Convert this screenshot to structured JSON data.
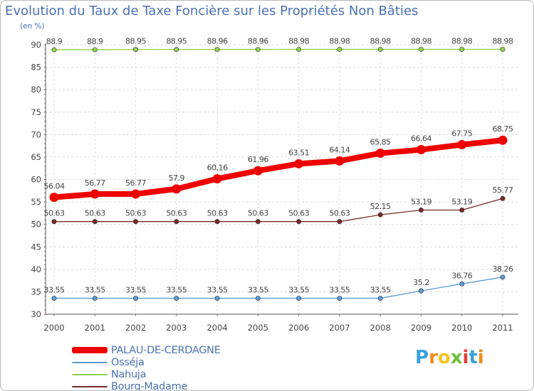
{
  "title": "Evolution du Taux de Taxe Foncière sur les Propriétés Non Bâties",
  "unit_label": "(en %)",
  "logo": {
    "text": "Proxiti",
    "colors": [
      "#3aa0dc",
      "#f08a1c",
      "#f6c21c",
      "#6cbf3a",
      "#e63b3b",
      "#3aa0dc",
      "#f08a1c"
    ]
  },
  "chart_data": {
    "type": "line",
    "title": "Evolution du Taux de Taxe Foncière sur les Propriétés Non Bâties",
    "ylabel": "(en %)",
    "xlabel": "",
    "x": [
      "2000",
      "2001",
      "2002",
      "2003",
      "2004",
      "2005",
      "2006",
      "2007",
      "2008",
      "2009",
      "2010",
      "2011"
    ],
    "ylim": [
      30,
      90
    ],
    "yticks": [
      30,
      35,
      40,
      45,
      50,
      55,
      60,
      65,
      70,
      75,
      80,
      85,
      90
    ],
    "legend_position": "bottom-left",
    "series": [
      {
        "name": "PALAU-DE-CERDAGNE",
        "color": "#ee0000",
        "values": [
          56.04,
          56.77,
          56.77,
          57.9,
          60.16,
          61.96,
          63.51,
          64.14,
          65.85,
          66.64,
          67.75,
          68.75
        ],
        "labels": [
          "56.04",
          "56.77",
          "56.77",
          "57.9",
          "60.16",
          "61.96",
          "63.51",
          "64.14",
          "65.85",
          "66.64",
          "67.75",
          "68.75"
        ]
      },
      {
        "name": "Osséja",
        "color": "#5b9bd5",
        "values": [
          33.55,
          33.55,
          33.55,
          33.55,
          33.55,
          33.55,
          33.55,
          33.55,
          33.55,
          35.2,
          36.76,
          38.26
        ],
        "labels": [
          "33.55",
          "33.55",
          "33.55",
          "33.55",
          "33.55",
          "33.55",
          "33.55",
          "33.55",
          "33.55",
          "35.2",
          "36.76",
          "38.26"
        ]
      },
      {
        "name": "Nahuja",
        "color": "#8fd14f",
        "values": [
          88.9,
          88.9,
          88.95,
          88.95,
          88.96,
          88.96,
          88.98,
          88.98,
          88.98,
          88.98,
          88.98,
          88.98
        ],
        "labels": [
          "88.9",
          "88.9",
          "88.95",
          "88.95",
          "88.96",
          "88.96",
          "88.98",
          "88.98",
          "88.98",
          "88.98",
          "88.98",
          "88.98"
        ]
      },
      {
        "name": "Bourg-Madame",
        "color": "#7a2a2a",
        "values": [
          50.63,
          50.63,
          50.63,
          50.63,
          50.63,
          50.63,
          50.63,
          50.63,
          52.15,
          53.19,
          53.19,
          55.77
        ],
        "labels": [
          "50.63",
          "50.63",
          "50.63",
          "50.63",
          "50.63",
          "50.63",
          "50.63",
          "50.63",
          "52.15",
          "53.19",
          "53.19",
          "55.77"
        ]
      }
    ]
  }
}
